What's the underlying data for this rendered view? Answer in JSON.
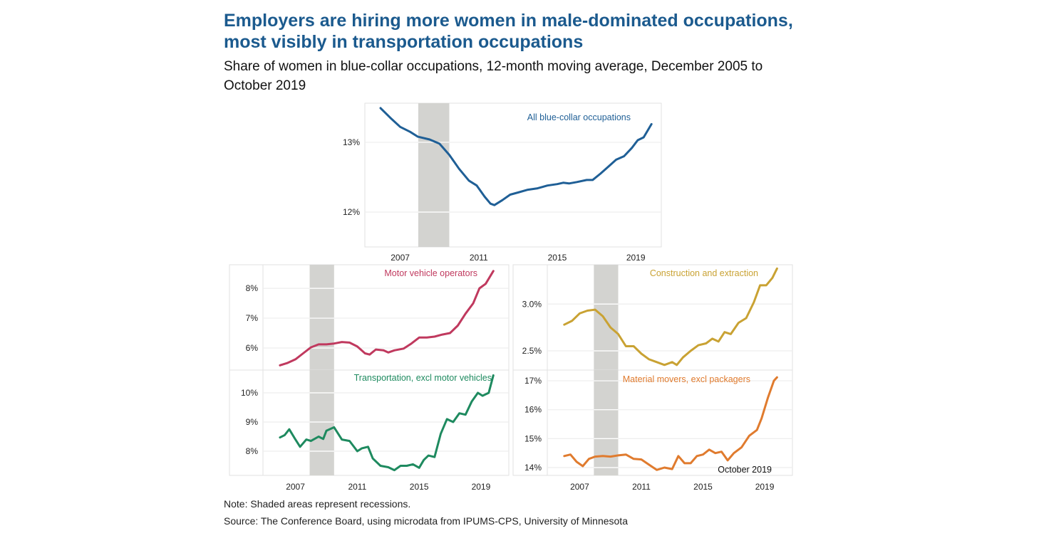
{
  "title": "Employers are hiring more women in male-dominated occupations, most visibly in transportation occupations",
  "subtitle": "Share of women in blue-collar occupations, 12-month moving average, December 2005 to October 2019",
  "note": "Note: Shaded areas represent recessions.",
  "source": "Source: The Conference Board, using microdata from IPUMS-CPS, University of Minnesota",
  "chart_data": [
    {
      "type": "line",
      "title": "All blue-collar occupations",
      "color": "#1f5f96",
      "x_ticks": [
        "2007",
        "2011",
        "2015",
        "2019"
      ],
      "y_ticks": [
        {
          "v": 13,
          "label": "13%"
        },
        {
          "v": 12,
          "label": "12%"
        }
      ],
      "ylim": [
        11.5,
        13.56
      ],
      "xlim": [
        2005.2,
        2020.3
      ],
      "recession": [
        2007.92,
        2009.5
      ],
      "points": [
        [
          2006.0,
          13.49
        ],
        [
          2006.5,
          13.35
        ],
        [
          2007.0,
          13.22
        ],
        [
          2007.5,
          13.15
        ],
        [
          2007.9,
          13.08
        ],
        [
          2008.5,
          13.04
        ],
        [
          2009.0,
          12.98
        ],
        [
          2009.5,
          12.82
        ],
        [
          2010.0,
          12.62
        ],
        [
          2010.5,
          12.45
        ],
        [
          2010.9,
          12.38
        ],
        [
          2011.3,
          12.22
        ],
        [
          2011.6,
          12.12
        ],
        [
          2011.8,
          12.1
        ],
        [
          2012.2,
          12.17
        ],
        [
          2012.6,
          12.25
        ],
        [
          2013.0,
          12.28
        ],
        [
          2013.5,
          12.32
        ],
        [
          2014.0,
          12.34
        ],
        [
          2014.5,
          12.38
        ],
        [
          2015.0,
          12.4
        ],
        [
          2015.3,
          12.42
        ],
        [
          2015.6,
          12.41
        ],
        [
          2016.0,
          12.43
        ],
        [
          2016.5,
          12.46
        ],
        [
          2016.8,
          12.46
        ],
        [
          2017.2,
          12.55
        ],
        [
          2017.6,
          12.65
        ],
        [
          2018.0,
          12.75
        ],
        [
          2018.4,
          12.8
        ],
        [
          2018.8,
          12.92
        ],
        [
          2019.1,
          13.03
        ],
        [
          2019.4,
          13.07
        ],
        [
          2019.8,
          13.26
        ]
      ]
    },
    {
      "type": "line",
      "title": "Motor vehicle operators",
      "color": "#c0395e",
      "x_ticks": [],
      "y_ticks": [
        {
          "v": 8,
          "label": "8%"
        },
        {
          "v": 7,
          "label": "7%"
        },
        {
          "v": 6,
          "label": "6%"
        }
      ],
      "ylim": [
        5.26,
        8.79
      ],
      "xlim": [
        2004.9,
        2020.8
      ],
      "recession": [
        2007.92,
        2009.5
      ],
      "points": [
        [
          2006.0,
          5.42
        ],
        [
          2006.5,
          5.5
        ],
        [
          2007.0,
          5.62
        ],
        [
          2007.5,
          5.82
        ],
        [
          2008.0,
          6.02
        ],
        [
          2008.5,
          6.12
        ],
        [
          2009.0,
          6.12
        ],
        [
          2009.5,
          6.15
        ],
        [
          2010.0,
          6.2
        ],
        [
          2010.5,
          6.18
        ],
        [
          2011.0,
          6.05
        ],
        [
          2011.5,
          5.82
        ],
        [
          2011.8,
          5.78
        ],
        [
          2012.2,
          5.95
        ],
        [
          2012.7,
          5.92
        ],
        [
          2013.0,
          5.85
        ],
        [
          2013.4,
          5.92
        ],
        [
          2014.0,
          5.98
        ],
        [
          2014.5,
          6.15
        ],
        [
          2015.0,
          6.35
        ],
        [
          2015.5,
          6.35
        ],
        [
          2016.0,
          6.38
        ],
        [
          2016.5,
          6.45
        ],
        [
          2017.0,
          6.5
        ],
        [
          2017.5,
          6.75
        ],
        [
          2018.0,
          7.15
        ],
        [
          2018.5,
          7.5
        ],
        [
          2018.9,
          8.0
        ],
        [
          2019.3,
          8.15
        ],
        [
          2019.8,
          8.58
        ]
      ]
    },
    {
      "type": "line",
      "title": "Construction and extraction",
      "color": "#c9a233",
      "x_ticks": [],
      "y_ticks": [
        {
          "v": 3.0,
          "label": "3.0%"
        },
        {
          "v": 2.5,
          "label": "2.5%"
        }
      ],
      "ylim": [
        2.295,
        3.42
      ],
      "xlim": [
        2004.9,
        2020.8
      ],
      "recession": [
        2007.92,
        2009.5
      ],
      "points": [
        [
          2006.0,
          2.78
        ],
        [
          2006.5,
          2.82
        ],
        [
          2007.0,
          2.9
        ],
        [
          2007.5,
          2.93
        ],
        [
          2008.0,
          2.94
        ],
        [
          2008.5,
          2.87
        ],
        [
          2009.0,
          2.75
        ],
        [
          2009.5,
          2.68
        ],
        [
          2010.0,
          2.55
        ],
        [
          2010.5,
          2.55
        ],
        [
          2011.0,
          2.47
        ],
        [
          2011.5,
          2.41
        ],
        [
          2012.0,
          2.38
        ],
        [
          2012.5,
          2.35
        ],
        [
          2013.0,
          2.38
        ],
        [
          2013.3,
          2.35
        ],
        [
          2013.7,
          2.43
        ],
        [
          2014.2,
          2.5
        ],
        [
          2014.7,
          2.56
        ],
        [
          2015.2,
          2.58
        ],
        [
          2015.6,
          2.63
        ],
        [
          2016.0,
          2.6
        ],
        [
          2016.4,
          2.7
        ],
        [
          2016.8,
          2.68
        ],
        [
          2017.3,
          2.8
        ],
        [
          2017.8,
          2.85
        ],
        [
          2018.3,
          3.02
        ],
        [
          2018.7,
          3.2
        ],
        [
          2019.1,
          3.2
        ],
        [
          2019.5,
          3.28
        ],
        [
          2019.8,
          3.38
        ]
      ]
    },
    {
      "type": "line",
      "title": "Transportation, excl motor vehicles",
      "color": "#1e8a5f",
      "x_ticks": [
        "2007",
        "2011",
        "2015",
        "2019"
      ],
      "y_ticks": [
        {
          "v": 10,
          "label": "10%"
        },
        {
          "v": 9,
          "label": "9%"
        },
        {
          "v": 8,
          "label": "8%"
        }
      ],
      "ylim": [
        7.17,
        10.78
      ],
      "xlim": [
        2004.9,
        2020.8
      ],
      "recession": [
        2007.92,
        2009.5
      ],
      "points": [
        [
          2006.0,
          8.47
        ],
        [
          2006.3,
          8.55
        ],
        [
          2006.6,
          8.75
        ],
        [
          2007.0,
          8.4
        ],
        [
          2007.3,
          8.15
        ],
        [
          2007.7,
          8.4
        ],
        [
          2008.0,
          8.35
        ],
        [
          2008.5,
          8.5
        ],
        [
          2008.8,
          8.42
        ],
        [
          2009.0,
          8.7
        ],
        [
          2009.5,
          8.82
        ],
        [
          2010.0,
          8.4
        ],
        [
          2010.5,
          8.35
        ],
        [
          2011.0,
          8.0
        ],
        [
          2011.3,
          8.1
        ],
        [
          2011.7,
          8.15
        ],
        [
          2012.0,
          7.75
        ],
        [
          2012.5,
          7.5
        ],
        [
          2013.0,
          7.45
        ],
        [
          2013.4,
          7.35
        ],
        [
          2013.8,
          7.5
        ],
        [
          2014.2,
          7.5
        ],
        [
          2014.6,
          7.55
        ],
        [
          2015.0,
          7.43
        ],
        [
          2015.3,
          7.7
        ],
        [
          2015.6,
          7.85
        ],
        [
          2016.0,
          7.8
        ],
        [
          2016.4,
          8.6
        ],
        [
          2016.8,
          9.1
        ],
        [
          2017.2,
          9.0
        ],
        [
          2017.6,
          9.3
        ],
        [
          2018.0,
          9.25
        ],
        [
          2018.4,
          9.7
        ],
        [
          2018.8,
          10.0
        ],
        [
          2019.1,
          9.9
        ],
        [
          2019.5,
          10.0
        ],
        [
          2019.8,
          10.6
        ]
      ]
    },
    {
      "type": "line",
      "title": "Material movers, excl packagers",
      "color": "#e07b2e",
      "annotation": "October 2019",
      "x_ticks": [
        "2007",
        "2011",
        "2015",
        "2019"
      ],
      "y_ticks": [
        {
          "v": 17,
          "label": "17%"
        },
        {
          "v": 16,
          "label": "16%"
        },
        {
          "v": 15,
          "label": "15%"
        },
        {
          "v": 14,
          "label": "14%"
        }
      ],
      "ylim": [
        13.73,
        17.37
      ],
      "xlim": [
        2004.9,
        2020.8
      ],
      "recession": [
        2007.92,
        2009.5
      ],
      "points": [
        [
          2006.0,
          14.4
        ],
        [
          2006.4,
          14.45
        ],
        [
          2006.8,
          14.2
        ],
        [
          2007.2,
          14.05
        ],
        [
          2007.6,
          14.3
        ],
        [
          2008.0,
          14.38
        ],
        [
          2008.5,
          14.4
        ],
        [
          2009.0,
          14.38
        ],
        [
          2009.5,
          14.42
        ],
        [
          2010.0,
          14.45
        ],
        [
          2010.5,
          14.3
        ],
        [
          2011.0,
          14.28
        ],
        [
          2011.5,
          14.1
        ],
        [
          2012.0,
          13.92
        ],
        [
          2012.5,
          14.0
        ],
        [
          2013.0,
          13.95
        ],
        [
          2013.4,
          14.4
        ],
        [
          2013.8,
          14.15
        ],
        [
          2014.2,
          14.15
        ],
        [
          2014.6,
          14.4
        ],
        [
          2015.0,
          14.45
        ],
        [
          2015.4,
          14.62
        ],
        [
          2015.8,
          14.5
        ],
        [
          2016.2,
          14.55
        ],
        [
          2016.6,
          14.25
        ],
        [
          2017.0,
          14.5
        ],
        [
          2017.5,
          14.7
        ],
        [
          2018.0,
          15.1
        ],
        [
          2018.5,
          15.3
        ],
        [
          2018.8,
          15.7
        ],
        [
          2019.2,
          16.4
        ],
        [
          2019.6,
          17.0
        ],
        [
          2019.8,
          17.12
        ]
      ]
    }
  ]
}
